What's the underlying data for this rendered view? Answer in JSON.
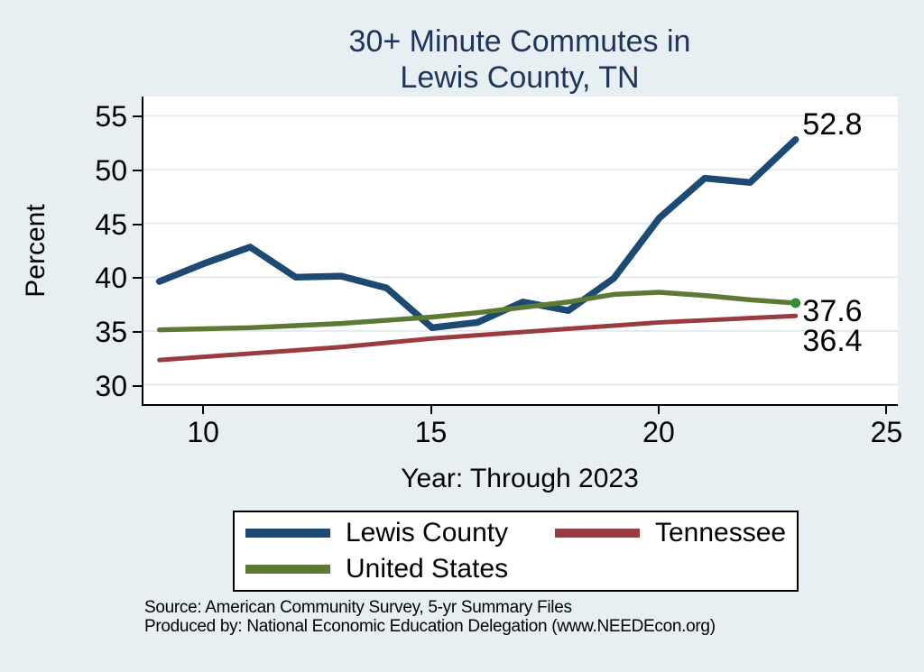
{
  "chart_data": {
    "type": "line",
    "title": "30+ Minute Commutes in Lewis County, TN",
    "title_lines": [
      "30+ Minute Commutes in",
      "Lewis County, TN"
    ],
    "xlabel": "Year: Through 2023",
    "ylabel": "Percent",
    "x": [
      9,
      10,
      11,
      12,
      13,
      14,
      15,
      16,
      17,
      18,
      19,
      20,
      21,
      22,
      23
    ],
    "xticks": [
      10,
      15,
      20,
      25
    ],
    "yticks": [
      55,
      50,
      45,
      40,
      35,
      30
    ],
    "xlim": [
      8.65,
      25.25
    ],
    "ylim": [
      28.2,
      56.8
    ],
    "grid": "horizontal",
    "legend_position": "bottom",
    "series": [
      {
        "name": "Lewis County",
        "color": "#1D4A72",
        "stroke_width": 7.5,
        "values": [
          39.6,
          41.3,
          42.8,
          40.0,
          40.1,
          39.0,
          35.3,
          35.8,
          37.7,
          36.9,
          39.9,
          45.5,
          49.2,
          48.8,
          52.8
        ],
        "end_label": "52.8",
        "end_label_dy": -17
      },
      {
        "name": "Tennessee",
        "color": "#993C42",
        "stroke_width": 5,
        "values": [
          32.3,
          32.6,
          32.9,
          33.2,
          33.5,
          33.9,
          34.3,
          34.6,
          34.9,
          35.2,
          35.5,
          35.8,
          36.0,
          36.2,
          36.4
        ],
        "end_label": "36.4",
        "end_label_dy": 26
      },
      {
        "name": "United States",
        "color": "#5C7A33",
        "stroke_width": 5.5,
        "values": [
          35.1,
          35.2,
          35.3,
          35.5,
          35.7,
          36.0,
          36.3,
          36.7,
          37.2,
          37.7,
          38.4,
          38.6,
          38.3,
          37.9,
          37.6
        ],
        "end_label": "37.6",
        "end_label_dy": 8,
        "end_marker": true,
        "end_marker_color": "#2F8F35"
      }
    ]
  },
  "footer": {
    "line1": "Source: American Community Survey, 5-yr Summary Files",
    "line2": "Produced by: National Economic Education Delegation (www.NEEDEcon.org)"
  },
  "colors": {
    "background": "#E8EFF2",
    "plot_background": "#FFFFFF",
    "grid": "#E2ECEF",
    "axis": "#000000",
    "title": "#20355C"
  }
}
